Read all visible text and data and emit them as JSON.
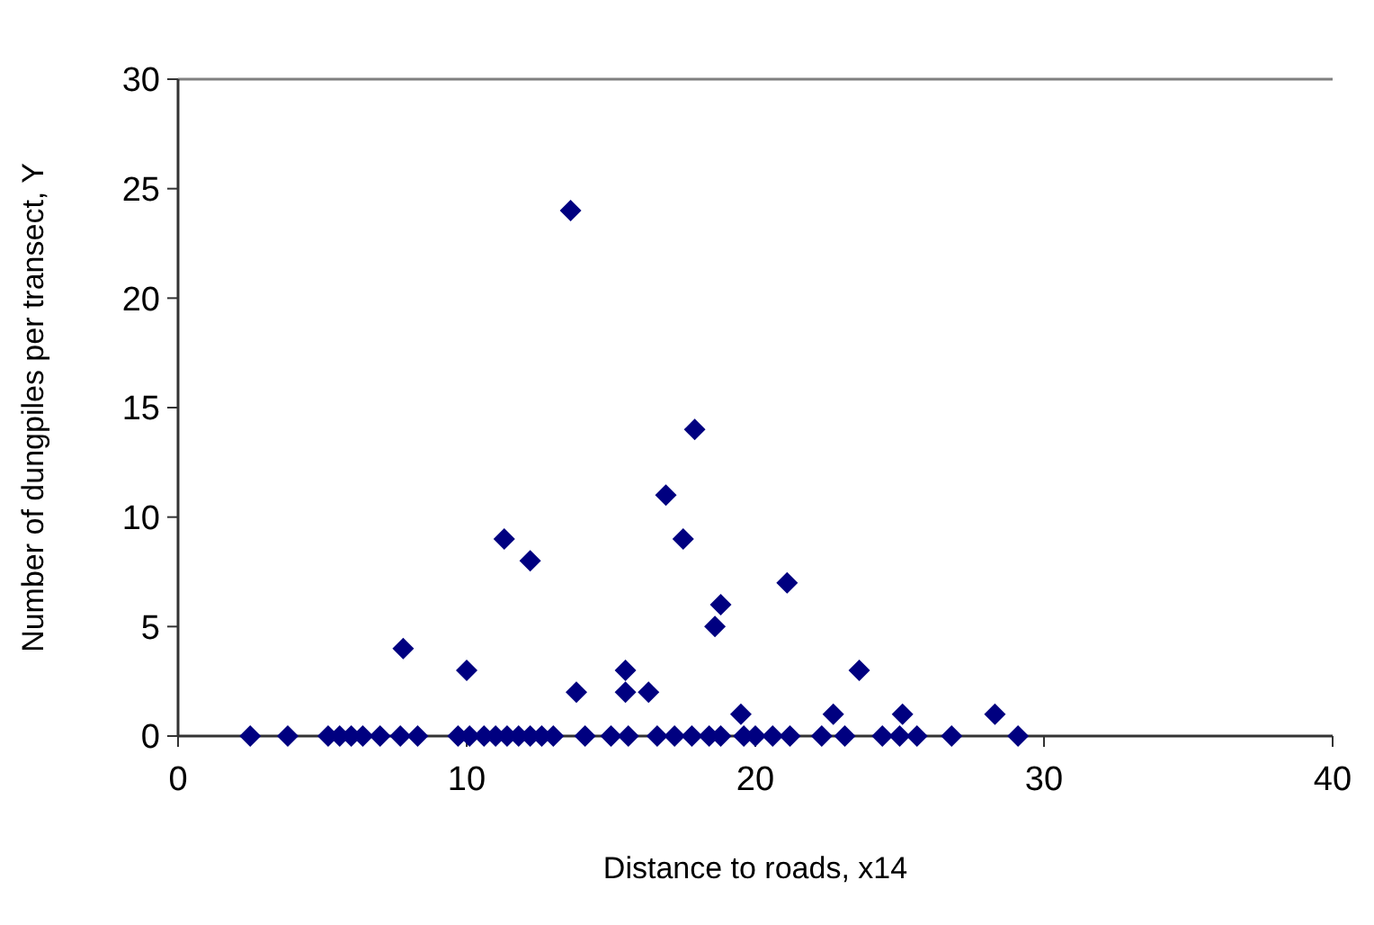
{
  "chart_data": {
    "type": "scatter",
    "xlabel": "Distance to roads, x14",
    "ylabel": "Number of dungpiles per transect, Y",
    "xlim": [
      0,
      40
    ],
    "ylim": [
      0,
      30
    ],
    "xticks": [
      0,
      10,
      20,
      30,
      40
    ],
    "yticks": [
      0,
      5,
      10,
      15,
      20,
      25,
      30
    ],
    "marker": "diamond",
    "series": [
      {
        "color": "#000080",
        "x": [
          7.8,
          10,
          11.3,
          12.2,
          13.6,
          13.8,
          15.5,
          15.5,
          16.3,
          16.9,
          17.5,
          17.9,
          18.6,
          18.8,
          19.5,
          21.1,
          22.7,
          23.6,
          25.1,
          28.3,
          2.5,
          3.8,
          5.2,
          5.6,
          6,
          6.4,
          7,
          7.7,
          8.3,
          9.7,
          10.1,
          10.6,
          11,
          11.4,
          11.8,
          12.2,
          12.6,
          13,
          14.1,
          15,
          15.6,
          16.6,
          17.2,
          17.8,
          18.4,
          18.8,
          19.6,
          20,
          20.6,
          21.2,
          22.3,
          23.1,
          24.4,
          25,
          25.6,
          26.8,
          29.1
        ],
        "values": [
          4,
          3,
          9,
          8,
          24,
          2,
          3,
          2,
          2,
          11,
          9,
          14,
          5,
          6,
          1,
          7,
          1,
          3,
          1,
          1,
          0,
          0,
          0,
          0,
          0,
          0,
          0,
          0,
          0,
          0,
          0,
          0,
          0,
          0,
          0,
          0,
          0,
          0,
          0,
          0,
          0,
          0,
          0,
          0,
          0,
          0,
          0,
          0,
          0,
          0,
          0,
          0,
          0,
          0,
          0,
          0,
          0
        ]
      }
    ]
  }
}
